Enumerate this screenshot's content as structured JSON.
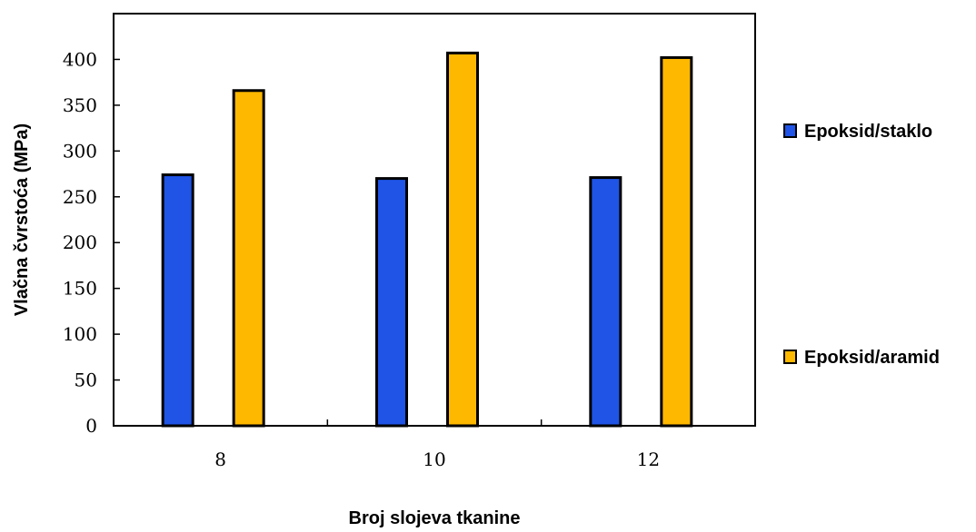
{
  "chart_data": {
    "type": "bar",
    "categories": [
      "8",
      "10",
      "12"
    ],
    "series": [
      {
        "name": "Epoksid/staklo",
        "color": "#1f54e6",
        "values": [
          274,
          270,
          271
        ]
      },
      {
        "name": "Epoksid/aramid",
        "color": "#ffb800",
        "values": [
          366,
          407,
          402
        ]
      }
    ],
    "xlabel": "Broj slojeva tkanine",
    "ylabel": "Vlačna čvrstoća (MPa)",
    "ylim": [
      0,
      450
    ],
    "yticks": [
      0,
      50,
      100,
      150,
      200,
      250,
      300,
      350,
      400
    ],
    "grid": false,
    "legend_position": "right"
  }
}
